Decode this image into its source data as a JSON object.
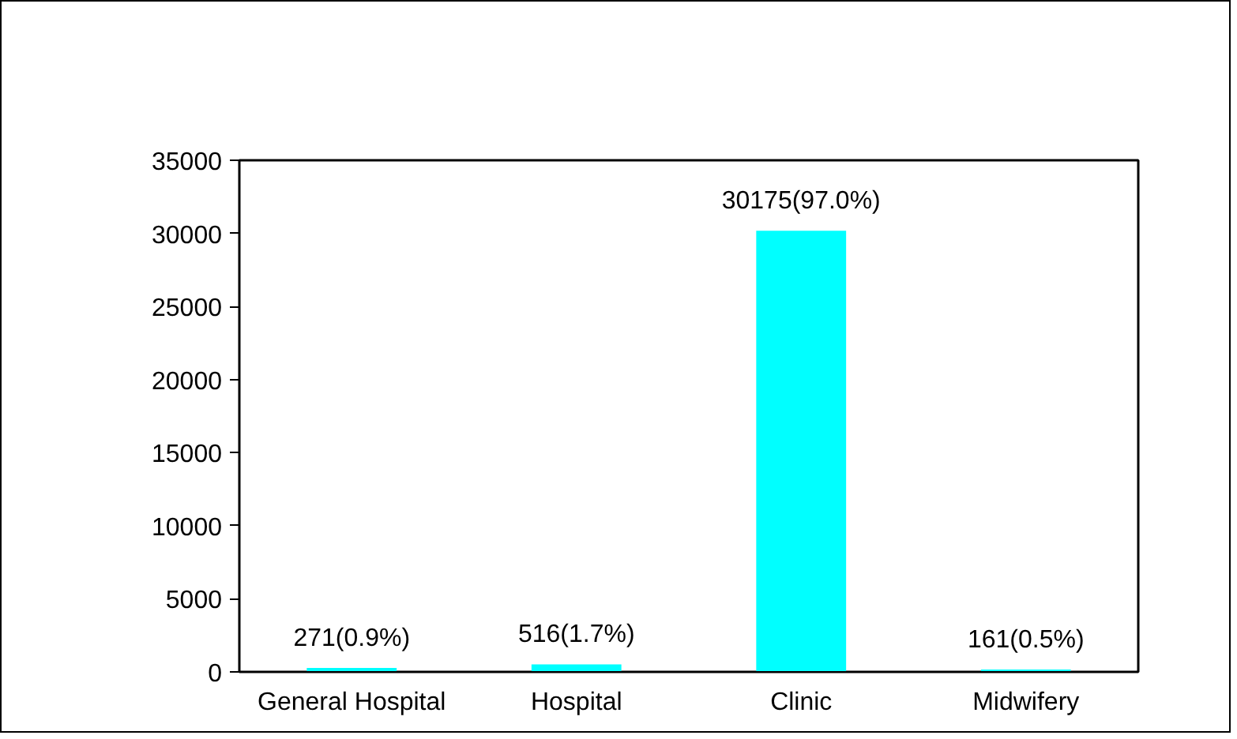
{
  "chart_data": {
    "type": "bar",
    "categories": [
      "General Hospital",
      "Hospital",
      "Clinic",
      "Midwifery"
    ],
    "values": [
      271,
      516,
      30175,
      161
    ],
    "value_labels": [
      "271(0.9%)",
      "516(1.7%)",
      "30175(97.0%)",
      "161(0.5%)"
    ],
    "color": "#00ffff",
    "ylim": [
      0,
      35000
    ],
    "yticks": [
      0,
      5000,
      10000,
      15000,
      20000,
      25000,
      30000,
      35000
    ]
  }
}
